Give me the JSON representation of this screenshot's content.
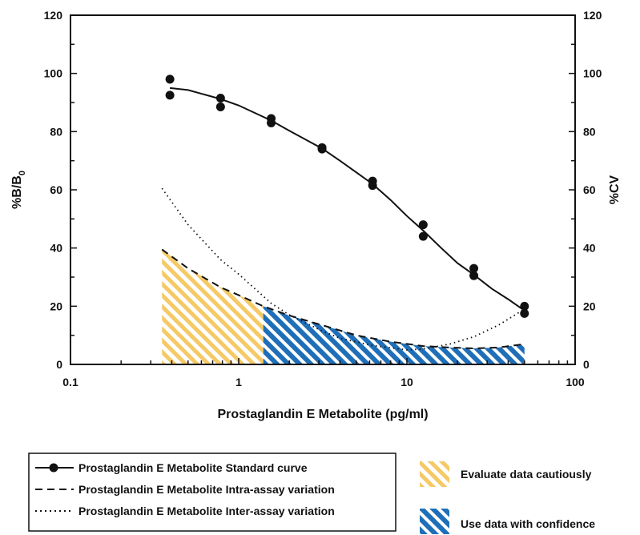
{
  "chart_data": {
    "type": "line",
    "xlabel": "Prostaglandin E Metabolite (pg/ml)",
    "ylabel_left": "%B/B",
    "ylabel_left_sub": "0",
    "ylabel_right": "%CV",
    "x_scale": "log",
    "xlim": [
      0.1,
      100
    ],
    "x_ticks": [
      "0.1",
      "1",
      "10",
      "100"
    ],
    "ylim": [
      0,
      120
    ],
    "y_ticks": [
      "0",
      "20",
      "40",
      "60",
      "80",
      "100",
      "120"
    ],
    "y2lim": [
      0,
      120
    ],
    "y2_ticks": [
      "0",
      "20",
      "40",
      "60",
      "80",
      "100",
      "120"
    ],
    "grid": false,
    "legend_position": "bottom",
    "series": [
      {
        "name": "Prostaglandin E Metabolite Standard curve",
        "style": "solid line with circle markers",
        "color": "#111111",
        "points": [
          [
            0.39,
            98
          ],
          [
            0.39,
            92.5
          ],
          [
            0.78,
            91.5
          ],
          [
            0.78,
            88.5
          ],
          [
            1.56,
            84.5
          ],
          [
            1.56,
            83
          ],
          [
            3.13,
            74
          ],
          [
            3.13,
            74.5
          ],
          [
            6.25,
            63
          ],
          [
            6.25,
            61.5
          ],
          [
            12.5,
            48
          ],
          [
            12.5,
            44
          ],
          [
            25,
            33
          ],
          [
            25,
            30.5
          ],
          [
            50,
            20
          ],
          [
            50,
            17.5
          ]
        ],
        "curve": [
          [
            0.39,
            95
          ],
          [
            0.5,
            94.3
          ],
          [
            0.78,
            91.2
          ],
          [
            1,
            89
          ],
          [
            1.56,
            83.8
          ],
          [
            2,
            80.3
          ],
          [
            3.13,
            74.2
          ],
          [
            4,
            70
          ],
          [
            5,
            66
          ],
          [
            6.25,
            62
          ],
          [
            8,
            56.5
          ],
          [
            10,
            51
          ],
          [
            12.5,
            46
          ],
          [
            16,
            40
          ],
          [
            20,
            34.8
          ],
          [
            25,
            30.8
          ],
          [
            32,
            26
          ],
          [
            40,
            22.4
          ],
          [
            50,
            18.5
          ]
        ]
      },
      {
        "name": "Prostaglandin E Metabolite Intra-assay variation",
        "style": "dashed",
        "color": "#111111",
        "points": [
          [
            0.35,
            39.5
          ],
          [
            0.5,
            33
          ],
          [
            0.78,
            26.5
          ],
          [
            1,
            23.8
          ],
          [
            1.4,
            20
          ],
          [
            2,
            16.8
          ],
          [
            3.13,
            13.5
          ],
          [
            5,
            10
          ],
          [
            8,
            7.8
          ],
          [
            12.5,
            6.3
          ],
          [
            18,
            5.8
          ],
          [
            25,
            5.5
          ],
          [
            35,
            5.8
          ],
          [
            50,
            7
          ]
        ]
      },
      {
        "name": "Prostaglandin E Metabolite Inter-assay variation",
        "style": "dotted",
        "color": "#111111",
        "points": [
          [
            0.35,
            60.5
          ],
          [
            0.5,
            48
          ],
          [
            0.78,
            36
          ],
          [
            1,
            31
          ],
          [
            1.56,
            21
          ],
          [
            2,
            17
          ],
          [
            3.13,
            11.5
          ],
          [
            4,
            9
          ],
          [
            6.25,
            6.5
          ],
          [
            10,
            5
          ],
          [
            12.5,
            5.3
          ],
          [
            18,
            7
          ],
          [
            25,
            9.5
          ],
          [
            35,
            13.5
          ],
          [
            50,
            19
          ]
        ]
      }
    ],
    "shaded_regions": [
      {
        "name": "Evaluate data cautiously",
        "x_range": [
          0.35,
          1.4
        ],
        "under": "Intra-assay variation",
        "color": "#f5c965",
        "pattern": "hatched"
      },
      {
        "name": "Use data with confidence",
        "x_range": [
          1.4,
          50
        ],
        "under": "Intra-assay variation",
        "color": "#1f6fb8",
        "pattern": "hatched"
      }
    ]
  },
  "legend": {
    "items": [
      "Prostaglandin E Metabolite Standard curve",
      "Prostaglandin E Metabolite Intra-assay variation",
      "Prostaglandin E Metabolite Inter-assay variation"
    ],
    "region_items": [
      "Evaluate data cautiously",
      "Use data with confidence"
    ]
  },
  "colors": {
    "yellow_region": "#f5c965",
    "blue_region": "#1f6fb8",
    "ink": "#111111"
  }
}
